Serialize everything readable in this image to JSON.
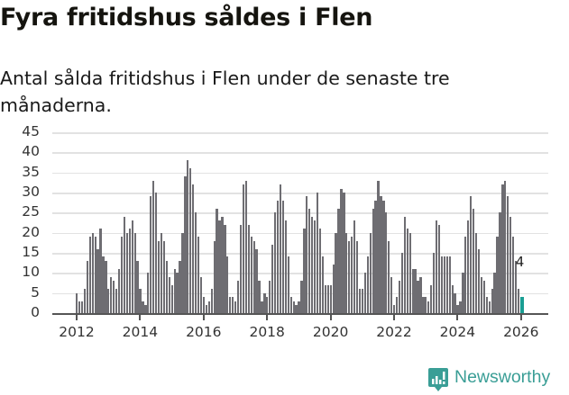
{
  "header": {
    "title": "Fyra fritidshus såldes i Flen",
    "subtitle": "Antal sålda fritidshus i Flen under de senaste tre månaderna."
  },
  "branding": {
    "logo_text": "Newsworthy",
    "logo_color": "#3a9e96"
  },
  "colors": {
    "bar": "#6e6d72",
    "highlight": "#1a9e93",
    "grid": "#e2e2e2"
  },
  "y_ticks": [
    "0",
    "5",
    "10",
    "15",
    "20",
    "25",
    "30",
    "35",
    "40",
    "45"
  ],
  "x_ticks": [
    "2012",
    "2014",
    "2016",
    "2018",
    "2020",
    "2022",
    "2024",
    "2026"
  ],
  "annotation": {
    "label": "4"
  },
  "chart_data": {
    "type": "bar",
    "title": "Fyra fritidshus såldes i Flen",
    "subtitle": "Antal sålda fritidshus i Flen under de senaste tre månaderna.",
    "xlabel": "",
    "ylabel": "",
    "ylim": [
      0,
      45
    ],
    "grid": true,
    "legend": "none",
    "x_start": "2012-01",
    "x_end": "2026-01",
    "frequency": "monthly",
    "x_tick_labels": [
      "2012",
      "2014",
      "2016",
      "2018",
      "2020",
      "2022",
      "2024",
      "2026"
    ],
    "y_tick_labels": [
      0,
      5,
      10,
      15,
      20,
      25,
      30,
      35,
      40,
      45
    ],
    "highlight": {
      "x": "2026-01",
      "value": 4,
      "label": "4",
      "color": "#1a9e93"
    },
    "values": [
      5,
      3,
      3,
      6,
      13,
      19,
      20,
      19,
      16,
      21,
      14,
      13,
      6,
      9,
      8,
      6,
      11,
      19,
      24,
      20,
      21,
      23,
      20,
      13,
      6,
      3,
      2,
      10,
      29,
      33,
      30,
      18,
      20,
      18,
      13,
      9,
      7,
      11,
      10,
      13,
      20,
      34,
      38,
      36,
      32,
      25,
      19,
      9,
      4,
      2,
      3,
      6,
      18,
      26,
      23,
      24,
      22,
      14,
      4,
      4,
      3,
      8,
      22,
      32,
      33,
      22,
      19,
      18,
      16,
      8,
      3,
      5,
      4,
      8,
      17,
      25,
      28,
      32,
      28,
      23,
      14,
      4,
      3,
      2,
      3,
      8,
      21,
      29,
      26,
      24,
      23,
      30,
      21,
      14,
      7,
      7,
      7,
      12,
      20,
      26,
      31,
      30,
      20,
      18,
      19,
      23,
      18,
      6,
      6,
      10,
      14,
      20,
      26,
      28,
      33,
      29,
      28,
      25,
      18,
      9,
      2,
      4,
      8,
      15,
      24,
      21,
      20,
      11,
      11,
      8,
      9,
      4,
      4,
      3,
      7,
      15,
      23,
      22,
      14,
      14,
      14,
      14,
      7,
      5,
      2,
      3,
      10,
      19,
      23,
      29,
      26,
      20,
      16,
      9,
      8,
      4,
      3,
      6,
      10,
      19,
      25,
      32,
      33,
      29,
      24,
      19,
      13,
      6,
      4
    ]
  }
}
